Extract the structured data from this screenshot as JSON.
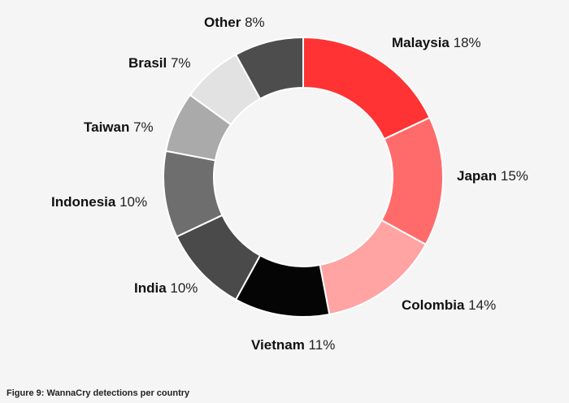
{
  "caption": "Figure 9: WannaCry detections per country",
  "chart_data": {
    "type": "pie",
    "donut": true,
    "title": "",
    "legend": "none",
    "unit": "%",
    "slices": [
      {
        "label": "Malaysia",
        "value": 18,
        "value_text": "18%",
        "color": "#ff3333"
      },
      {
        "label": "Japan",
        "value": 15,
        "value_text": "15%",
        "color": "#ff6b6b"
      },
      {
        "label": "Colombia",
        "value": 14,
        "value_text": "14%",
        "color": "#ffa3a3"
      },
      {
        "label": "Vietnam",
        "value": 11,
        "value_text": "11%",
        "color": "#050505"
      },
      {
        "label": "India",
        "value": 10,
        "value_text": "10%",
        "color": "#4a4a4a"
      },
      {
        "label": "Indonesia",
        "value": 10,
        "value_text": "10%",
        "color": "#6e6e6e"
      },
      {
        "label": "Taiwan",
        "value": 7,
        "value_text": "7%",
        "color": "#aaaaaa"
      },
      {
        "label": "Brasil",
        "value": 7,
        "value_text": "7%",
        "color": "#e2e2e2"
      },
      {
        "label": "Other",
        "value": 8,
        "value_text": "8%",
        "color": "#4d4d4d"
      }
    ]
  }
}
